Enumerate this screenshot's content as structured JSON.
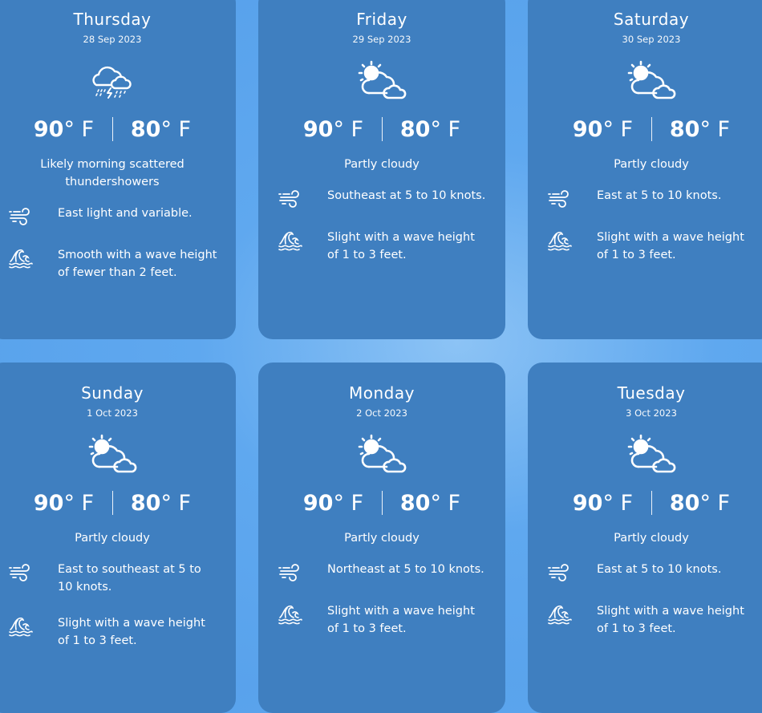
{
  "colors": {
    "card": "#3f7fc0",
    "background": "#5aa6f0"
  },
  "unit": "° F",
  "days": [
    {
      "day": "Thursday",
      "date": "28 Sep 2023",
      "icon": "thunderstorm-cloud-icon",
      "high": "90",
      "low": "80",
      "desc": "Likely morning scattered thundershowers",
      "wind": "East light and variable.",
      "waves": "Smooth with a wave height of fewer than 2 feet."
    },
    {
      "day": "Friday",
      "date": "29 Sep 2023",
      "icon": "partly-cloudy-icon",
      "high": "90",
      "low": "80",
      "desc": "Partly cloudy",
      "wind": "Southeast at 5 to 10 knots.",
      "waves": "Slight with a wave height of 1 to 3 feet."
    },
    {
      "day": "Saturday",
      "date": "30 Sep 2023",
      "icon": "partly-cloudy-icon",
      "high": "90",
      "low": "80",
      "desc": "Partly cloudy",
      "wind": "East at 5 to 10 knots.",
      "waves": "Slight with a wave height of 1 to 3 feet."
    },
    {
      "day": "Sunday",
      "date": "1 Oct 2023",
      "icon": "partly-cloudy-icon",
      "high": "90",
      "low": "80",
      "desc": "Partly cloudy",
      "wind": "East to southeast at 5 to 10 knots.",
      "waves": "Slight with a wave height of 1 to 3 feet."
    },
    {
      "day": "Monday",
      "date": "2 Oct 2023",
      "icon": "partly-cloudy-icon",
      "high": "90",
      "low": "80",
      "desc": "Partly cloudy",
      "wind": "Northeast at 5 to 10 knots.",
      "waves": "Slight with a wave height of 1 to 3 feet."
    },
    {
      "day": "Tuesday",
      "date": "3 Oct 2023",
      "icon": "partly-cloudy-icon",
      "high": "90",
      "low": "80",
      "desc": "Partly cloudy",
      "wind": "East at 5 to 10 knots.",
      "waves": "Slight with a wave height of 1 to 3 feet."
    }
  ]
}
